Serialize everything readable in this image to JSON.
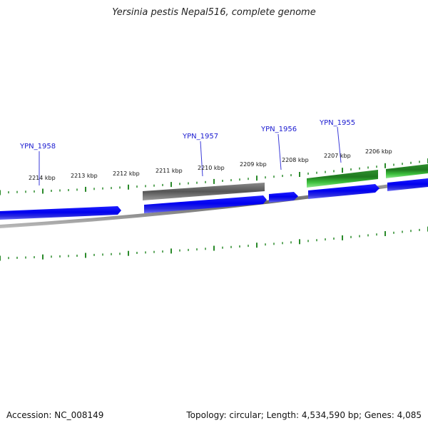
{
  "title": "Yersinia pestis Nepal516, complete genome",
  "footer": {
    "accession": "Accession: NC_008149",
    "topology": "Topology: circular; Length: 4,534,590 bp; Genes: 4,085"
  },
  "scale_labels": [
    {
      "kbp": 2214,
      "text": "2214 kbp"
    },
    {
      "kbp": 2213,
      "text": "2213 kbp"
    },
    {
      "kbp": 2212,
      "text": "2212 kbp"
    },
    {
      "kbp": 2211,
      "text": "2211 kbp"
    },
    {
      "kbp": 2210,
      "text": "2210 kbp"
    },
    {
      "kbp": 2209,
      "text": "2209 kbp"
    },
    {
      "kbp": 2208,
      "text": "2208 kbp"
    },
    {
      "kbp": 2207,
      "text": "2207 kbp"
    },
    {
      "kbp": 2206,
      "text": "2206 kbp"
    }
  ],
  "gene_labels": [
    "YPN_1958",
    "YPN_1957",
    "YPN_1956",
    "YPN_1955"
  ],
  "colors": {
    "cds": "#1010e8",
    "gene_grey": "#707070",
    "gene_green": "#2e9a2e",
    "tick": "#2a8a2a",
    "backbone": "#8c8c8c",
    "gene_label": "#1a1ad0",
    "label_line": "#3a3ad8"
  }
}
